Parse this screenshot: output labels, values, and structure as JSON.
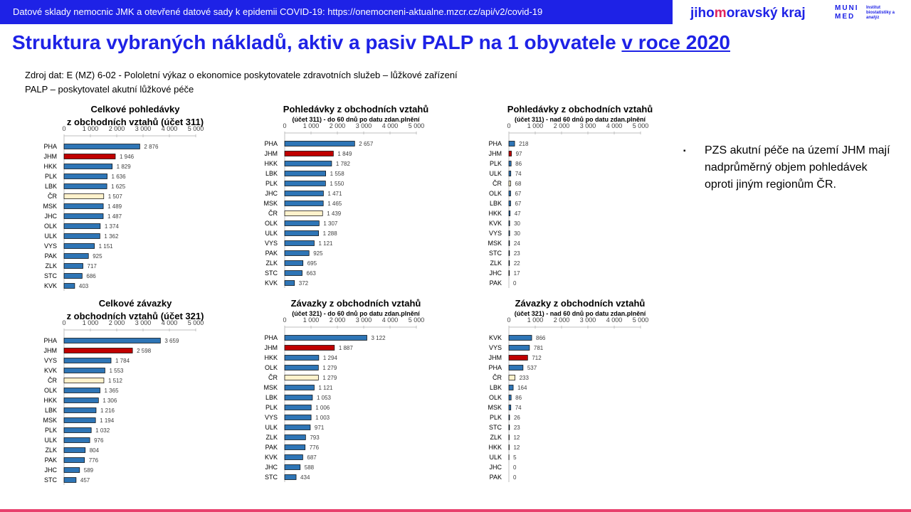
{
  "header": {
    "banner": "Datové sklady nemocnic JMK a otevřené datové sady k epidemii COVID-19: https://onemocneni-aktualne.mzcr.cz/api/v2/covid-19",
    "logo_kraj_pre": "jiho",
    "logo_kraj_mid": "m",
    "logo_kraj_post": "oravský kraj",
    "logo_muni_top": "MUNI",
    "logo_muni_bottom": "MED",
    "logo_muni_sub": "Institut biostatistiky a analýz"
  },
  "title": {
    "main": "Struktura vybraných nákladů, aktiv a pasiv PALP na 1 obyvatele ",
    "underlined": "v roce 2020"
  },
  "source": {
    "line1": "Zdroj dat: E (MZ) 6-02 - Pololetní výkaz o ekonomice poskytovatele zdravotních služeb – lůžkové zařízení",
    "line2": "PALP – poskytovatel akutní lůžkové péče"
  },
  "bullet": {
    "marker": "▪",
    "text": "PZS akutní péče na území JHM mají nadprůměrný objem pohledávek oproti jiným regionům ČR."
  },
  "colors": {
    "default_bar": "#2e75b6",
    "jhm_bar": "#c00000",
    "cr_bar": "#fff2cc",
    "brand_blue": "#1e22e6",
    "brand_pink": "#e0245e"
  },
  "chart_data": [
    {
      "type": "bar",
      "orientation": "horizontal",
      "title": "Celkové pohledávky",
      "title2": "z obchodních vztahů (účet 311)",
      "subtitle": "",
      "xlim": [
        0,
        5000
      ],
      "ticks": [
        "0",
        "1 000",
        "2 000",
        "3 000",
        "4 000",
        "5 000"
      ],
      "categories": [
        "PHA",
        "JHM",
        "HKK",
        "PLK",
        "LBK",
        "ČR",
        "MSK",
        "JHC",
        "OLK",
        "ULK",
        "VYS",
        "PAK",
        "ZLK",
        "STC",
        "KVK"
      ],
      "values": [
        2876,
        1946,
        1829,
        1636,
        1625,
        1507,
        1489,
        1487,
        1374,
        1362,
        1151,
        925,
        717,
        686,
        403
      ],
      "labels": [
        "2 876",
        "1 946",
        "1 829",
        "1 636",
        "1 625",
        "1 507",
        "1 489",
        "1 487",
        "1 374",
        "1 362",
        "1 151",
        "925",
        "717",
        "686",
        "403"
      ]
    },
    {
      "type": "bar",
      "orientation": "horizontal",
      "title": "Pohledávky z obchodních vztahů",
      "title2": "",
      "subtitle": "(účet 311) - do 60 dnů po datu zdan.plnění",
      "xlim": [
        0,
        5000
      ],
      "ticks": [
        "0",
        "1 000",
        "2 000",
        "3 000",
        "4 000",
        "5 000"
      ],
      "categories": [
        "PHA",
        "JHM",
        "HKK",
        "LBK",
        "PLK",
        "JHC",
        "MSK",
        "ČR",
        "OLK",
        "ULK",
        "VYS",
        "PAK",
        "ZLK",
        "STC",
        "KVK"
      ],
      "values": [
        2657,
        1849,
        1782,
        1558,
        1550,
        1471,
        1465,
        1439,
        1307,
        1288,
        1121,
        925,
        695,
        663,
        372
      ],
      "labels": [
        "2 657",
        "1 849",
        "1 782",
        "1 558",
        "1 550",
        "1 471",
        "1 465",
        "1 439",
        "1 307",
        "1 288",
        "1 121",
        "925",
        "695",
        "663",
        "372"
      ]
    },
    {
      "type": "bar",
      "orientation": "horizontal",
      "title": "Pohledávky z obchodních vztahů",
      "title2": "",
      "subtitle": "(účet 311) - nad 60 dnů po datu zdan.plnění",
      "xlim": [
        0,
        5000
      ],
      "ticks": [
        "0",
        "1 000",
        "2 000",
        "3 000",
        "4 000",
        "5 000"
      ],
      "categories": [
        "PHA",
        "JHM",
        "PLK",
        "ULK",
        "ČR",
        "OLK",
        "LBK",
        "HKK",
        "KVK",
        "VYS",
        "MSK",
        "STC",
        "ZLK",
        "JHC",
        "PAK"
      ],
      "values": [
        218,
        97,
        86,
        74,
        68,
        67,
        67,
        47,
        30,
        30,
        24,
        23,
        22,
        17,
        0
      ],
      "labels": [
        "218",
        "97",
        "86",
        "74",
        "68",
        "67",
        "67",
        "47",
        "30",
        "30",
        "24",
        "23",
        "22",
        "17",
        "0"
      ]
    },
    {
      "type": "bar",
      "orientation": "horizontal",
      "title": "Celkové závazky",
      "title2": "z obchodních vztahů (účet 321)",
      "subtitle": "",
      "xlim": [
        0,
        5000
      ],
      "ticks": [
        "0",
        "1 000",
        "2 000",
        "3 000",
        "4 000",
        "5 000"
      ],
      "categories": [
        "PHA",
        "JHM",
        "VYS",
        "KVK",
        "ČR",
        "OLK",
        "HKK",
        "LBK",
        "MSK",
        "PLK",
        "ULK",
        "ZLK",
        "PAK",
        "JHC",
        "STC"
      ],
      "values": [
        3659,
        2598,
        1784,
        1553,
        1512,
        1365,
        1306,
        1216,
        1194,
        1032,
        976,
        804,
        776,
        589,
        457
      ],
      "labels": [
        "3 659",
        "2 598",
        "1 784",
        "1 553",
        "1 512",
        "1 365",
        "1 306",
        "1 216",
        "1 194",
        "1 032",
        "976",
        "804",
        "776",
        "589",
        "457"
      ]
    },
    {
      "type": "bar",
      "orientation": "horizontal",
      "title": "Závazky z obchodních vztahů",
      "title2": "",
      "subtitle": "(účet 321) - do 60 dnů po datu zdan.plnění",
      "xlim": [
        0,
        5000
      ],
      "ticks": [
        "0",
        "1 000",
        "2 000",
        "3 000",
        "4 000",
        "5 000"
      ],
      "categories": [
        "PHA",
        "JHM",
        "HKK",
        "OLK",
        "ČR",
        "MSK",
        "LBK",
        "PLK",
        "VYS",
        "ULK",
        "ZLK",
        "PAK",
        "KVK",
        "JHC",
        "STC"
      ],
      "values": [
        3122,
        1887,
        1294,
        1279,
        1279,
        1121,
        1053,
        1006,
        1003,
        971,
        793,
        776,
        687,
        588,
        434
      ],
      "labels": [
        "3 122",
        "1 887",
        "1 294",
        "1 279",
        "1 279",
        "1 121",
        "1 053",
        "1 006",
        "1 003",
        "971",
        "793",
        "776",
        "687",
        "588",
        "434"
      ]
    },
    {
      "type": "bar",
      "orientation": "horizontal",
      "title": "Závazky z obchodních vztahů",
      "title2": "",
      "subtitle": "(účet 321) - nad 60 dnů po datu zdan.plnění",
      "xlim": [
        0,
        5000
      ],
      "ticks": [
        "0",
        "1 000",
        "2 000",
        "3 000",
        "4 000",
        "5 000"
      ],
      "categories": [
        "KVK",
        "VYS",
        "JHM",
        "PHA",
        "ČR",
        "LBK",
        "OLK",
        "MSK",
        "PLK",
        "STC",
        "ZLK",
        "HKK",
        "ULK",
        "JHC",
        "PAK"
      ],
      "values": [
        866,
        781,
        712,
        537,
        233,
        164,
        86,
        74,
        26,
        23,
        12,
        12,
        5,
        0,
        0
      ],
      "labels": [
        "866",
        "781",
        "712",
        "537",
        "233",
        "164",
        "86",
        "74",
        "26",
        "23",
        "12",
        "12",
        "5",
        "0",
        "0"
      ]
    }
  ]
}
